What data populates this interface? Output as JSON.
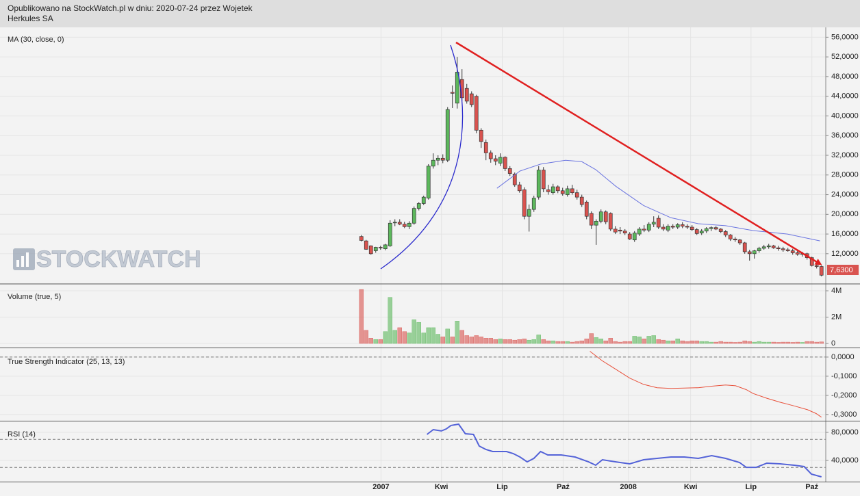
{
  "header": {
    "line1": "Opublikowano na StockWatch.pl w dniu: 2020-07-24 przez Wojetek",
    "line2": "Herkules SA"
  },
  "watermark": "STOCKWATCH",
  "chart_data": [
    {
      "type": "candlestick",
      "title": "MA (30, close, 0)",
      "xlim": [
        -75.4,
        96.9
      ],
      "ylim": [
        6,
        58
      ],
      "yticks": [
        {
          "value": 12,
          "label": "12,0000"
        },
        {
          "value": 16,
          "label": "16,0000"
        },
        {
          "value": 20,
          "label": "20,0000"
        },
        {
          "value": 24,
          "label": "24,0000"
        },
        {
          "value": 28,
          "label": "28,0000"
        },
        {
          "value": 32,
          "label": "32,0000"
        },
        {
          "value": 36,
          "label": "36,0000"
        },
        {
          "value": 40,
          "label": "40,0000"
        },
        {
          "value": 44,
          "label": "44,0000"
        },
        {
          "value": 48,
          "label": "48,0000"
        },
        {
          "value": 52,
          "label": "52,0000"
        },
        {
          "value": 56,
          "label": "56,0000"
        }
      ],
      "up_color": "#5cb85c",
      "down_color": "#d9534f",
      "candles": [
        [
          15.5,
          15.8,
          14.5,
          14.7
        ],
        [
          14.6,
          14.8,
          12.8,
          12.9
        ],
        [
          13.6,
          13.7,
          11.8,
          12.0
        ],
        [
          12.6,
          13.4,
          12.2,
          13.3
        ],
        [
          13.3,
          13.6,
          12.8,
          13.2
        ],
        [
          13.0,
          14.0,
          12.7,
          13.8
        ],
        [
          13.6,
          18.8,
          13.4,
          18.2
        ],
        [
          18.3,
          19.0,
          17.6,
          18.4
        ],
        [
          18.4,
          19.0,
          17.8,
          18.0
        ],
        [
          18.0,
          18.5,
          17.2,
          17.5
        ],
        [
          17.5,
          18.6,
          17.0,
          18.2
        ],
        [
          18.2,
          21.6,
          17.9,
          21.2
        ],
        [
          21.2,
          22.5,
          20.8,
          22.2
        ],
        [
          22.2,
          23.8,
          21.9,
          23.5
        ],
        [
          23.3,
          30.2,
          23.0,
          29.8
        ],
        [
          29.8,
          32.4,
          29.3,
          31.0
        ],
        [
          31.0,
          32.0,
          30.0,
          31.4
        ],
        [
          31.4,
          32.2,
          30.4,
          31.0
        ],
        [
          31.0,
          41.8,
          30.6,
          41.3
        ],
        [
          44.8,
          46.2,
          41.6,
          44.6
        ],
        [
          42.6,
          52.0,
          41.5,
          48.9
        ],
        [
          47.4,
          49.5,
          43.0,
          43.7
        ],
        [
          45.6,
          46.5,
          42.5,
          43.0
        ],
        [
          44.5,
          45.0,
          41.8,
          42.3
        ],
        [
          44.0,
          44.3,
          36.5,
          37.1
        ],
        [
          37.1,
          37.5,
          33.5,
          34.8
        ],
        [
          34.6,
          35.2,
          31.0,
          32.5
        ],
        [
          32.5,
          33.0,
          30.5,
          31.3
        ],
        [
          31.3,
          32.0,
          30.0,
          30.8
        ],
        [
          30.4,
          32.4,
          29.8,
          31.6
        ],
        [
          31.6,
          31.8,
          28.8,
          29.3
        ],
        [
          29.3,
          29.8,
          27.8,
          28.3
        ],
        [
          28.2,
          28.5,
          25.6,
          26.0
        ],
        [
          26.0,
          26.6,
          24.4,
          24.8
        ],
        [
          25.0,
          25.5,
          19.0,
          19.6
        ],
        [
          19.6,
          22.0,
          16.5,
          21.0
        ],
        [
          21.0,
          23.8,
          20.5,
          23.3
        ],
        [
          23.5,
          29.8,
          23.0,
          29.0
        ],
        [
          29.0,
          29.6,
          24.5,
          25.2
        ],
        [
          25.0,
          26.0,
          24.0,
          24.6
        ],
        [
          24.4,
          26.2,
          24.0,
          25.6
        ],
        [
          25.6,
          25.9,
          24.3,
          24.8
        ],
        [
          24.8,
          25.4,
          23.8,
          24.2
        ],
        [
          24.0,
          25.8,
          23.6,
          25.2
        ],
        [
          25.2,
          26.0,
          24.0,
          24.4
        ],
        [
          24.4,
          25.0,
          23.0,
          23.5
        ],
        [
          23.5,
          24.0,
          21.5,
          22.0
        ],
        [
          22.5,
          22.8,
          19.0,
          19.6
        ],
        [
          20.2,
          20.6,
          17.0,
          17.8
        ],
        [
          17.8,
          19.0,
          13.8,
          18.6
        ],
        [
          18.6,
          21.0,
          18.2,
          20.5
        ],
        [
          20.5,
          20.8,
          18.0,
          18.5
        ],
        [
          20.2,
          20.4,
          16.6,
          17.0
        ],
        [
          17.0,
          17.6,
          16.0,
          16.4
        ],
        [
          16.8,
          17.4,
          16.0,
          16.6
        ],
        [
          16.6,
          17.0,
          15.8,
          16.2
        ],
        [
          16.0,
          16.4,
          14.8,
          15.0
        ],
        [
          14.8,
          16.6,
          14.4,
          16.2
        ],
        [
          16.0,
          17.4,
          15.6,
          17.0
        ],
        [
          17.0,
          17.8,
          16.4,
          16.8
        ],
        [
          16.8,
          18.4,
          16.4,
          18.0
        ],
        [
          18.0,
          19.6,
          17.4,
          18.4
        ],
        [
          19.2,
          19.8,
          17.0,
          17.4
        ],
        [
          17.4,
          18.0,
          16.6,
          17.0
        ],
        [
          16.8,
          18.0,
          16.4,
          17.6
        ],
        [
          17.6,
          18.0,
          17.0,
          17.4
        ],
        [
          17.4,
          18.2,
          17.0,
          17.9
        ],
        [
          17.9,
          18.4,
          17.2,
          17.6
        ],
        [
          17.6,
          18.0,
          17.0,
          17.4
        ],
        [
          17.4,
          17.8,
          16.6,
          16.9
        ],
        [
          16.9,
          17.2,
          15.8,
          16.1
        ],
        [
          16.2,
          17.0,
          15.8,
          16.6
        ],
        [
          16.6,
          17.4,
          16.2,
          17.1
        ],
        [
          17.1,
          17.6,
          16.6,
          17.3
        ],
        [
          17.3,
          17.6,
          16.8,
          17.0
        ],
        [
          17.0,
          17.2,
          16.2,
          16.5
        ],
        [
          16.5,
          16.8,
          15.4,
          15.8
        ],
        [
          15.8,
          16.0,
          14.6,
          15.0
        ],
        [
          15.0,
          15.4,
          14.4,
          14.8
        ],
        [
          14.8,
          15.0,
          13.8,
          14.2
        ],
        [
          14.2,
          14.4,
          12.0,
          12.4
        ],
        [
          12.4,
          12.8,
          10.6,
          12.0
        ],
        [
          12.0,
          12.8,
          11.0,
          12.6
        ],
        [
          12.6,
          13.4,
          12.2,
          13.1
        ],
        [
          13.1,
          13.8,
          12.8,
          13.4
        ],
        [
          13.4,
          14.0,
          13.0,
          13.6
        ],
        [
          13.6,
          13.8,
          13.0,
          13.2
        ],
        [
          13.2,
          13.6,
          12.6,
          13.0
        ],
        [
          13.0,
          13.4,
          12.4,
          12.8
        ],
        [
          12.8,
          13.2,
          12.4,
          12.6
        ],
        [
          12.6,
          13.0,
          11.8,
          12.2
        ],
        [
          12.2,
          12.6,
          11.6,
          11.9
        ],
        [
          11.9,
          12.4,
          11.4,
          12.0
        ],
        [
          12.0,
          12.2,
          10.8,
          11.2
        ],
        [
          11.2,
          11.4,
          9.4,
          9.6
        ],
        [
          9.6,
          10.0,
          9.0,
          9.4
        ],
        [
          9.4,
          9.6,
          7.4,
          7.63
        ]
      ],
      "ma": {
        "color": "#6a74e0",
        "x": [
          28.3,
          33.1,
          37.4,
          42.6,
          46,
          48.9,
          53.1,
          58.9,
          64.6,
          70.3,
          76,
          81.7,
          88.9,
          95.7
        ],
        "values": [
          25.3,
          28.8,
          30.2,
          31.0,
          30.7,
          29.1,
          25.7,
          21.8,
          19.3,
          18.1,
          17.7,
          16.7,
          16.0,
          14.6
        ]
      },
      "last_price": 7.63,
      "last_price_label": "7,6300"
    },
    {
      "type": "volume",
      "title": "Volume (true, 5)",
      "xlim": [
        -75.4,
        96.9
      ],
      "ylim": [
        0,
        4470000
      ],
      "yticks": [
        0,
        {
          "value": 2000000,
          "label": "2M"
        },
        {
          "value": 4000000,
          "label": "4M"
        }
      ],
      "values": [
        4100000,
        1000000,
        400000,
        300000,
        300000,
        900000,
        3500000,
        1000000,
        1200000,
        900000,
        800000,
        1800000,
        1600000,
        800000,
        1200000,
        1200000,
        700000,
        500000,
        1100000,
        500000,
        1700000,
        1000000,
        600000,
        500000,
        600000,
        500000,
        400000,
        400000,
        300000,
        350000,
        300000,
        300000,
        250000,
        300000,
        350000,
        250000,
        300000,
        650000,
        300000,
        200000,
        200000,
        150000,
        150000,
        150000,
        100000,
        150000,
        200000,
        350000,
        750000,
        450000,
        350000,
        200000,
        400000,
        150000,
        100000,
        150000,
        150000,
        550000,
        500000,
        350000,
        550000,
        600000,
        300000,
        250000,
        200000,
        200000,
        350000,
        200000,
        150000,
        200000,
        200000,
        150000,
        150000,
        100000,
        100000,
        150000,
        100000,
        100000,
        80000,
        100000,
        200000,
        150000,
        100000,
        150000,
        100000,
        100000,
        100000,
        80000,
        100000,
        100000,
        80000,
        100000,
        80000,
        150000,
        150000,
        100000,
        120000
      ]
    },
    {
      "type": "line",
      "title": "True Strength Indicator (25, 13, 13)",
      "color": "#e8503a",
      "xlim": [
        -75.4,
        96.9
      ],
      "ylim": [
        -0.329,
        0.039
      ],
      "levels": [
        0
      ],
      "yticks": [
        {
          "value": 0,
          "label": "0,0000"
        },
        {
          "value": -0.1,
          "label": "-0,1000"
        },
        {
          "value": -0.2,
          "label": "-0,2000"
        },
        {
          "value": -0.3,
          "label": "-0,3000"
        }
      ],
      "x": [
        47.7,
        50.3,
        53.1,
        56,
        58.9,
        61.7,
        64.6,
        67.4,
        70.3,
        73.1,
        76,
        78.1,
        80.3,
        81.7,
        84.6,
        87.4,
        90.3,
        93.1,
        94.9,
        96
      ],
      "values": [
        0.03,
        -0.02,
        -0.064,
        -0.11,
        -0.143,
        -0.16,
        -0.164,
        -0.162,
        -0.16,
        -0.152,
        -0.146,
        -0.15,
        -0.17,
        -0.19,
        -0.215,
        -0.236,
        -0.255,
        -0.275,
        -0.295,
        -0.314
      ]
    },
    {
      "type": "line",
      "title": "RSI (14)",
      "color": "#5463d8",
      "xlim": [
        -75.4,
        96.9
      ],
      "ylim": [
        9.8,
        94.6
      ],
      "levels": [
        70,
        30
      ],
      "yticks": [
        {
          "value": 80,
          "label": "80,0000"
        },
        {
          "value": 40,
          "label": "40,0000"
        }
      ],
      "xticks": [
        {
          "value": 4.1,
          "label": "2007"
        },
        {
          "value": 16.7,
          "label": "Kwi"
        },
        {
          "value": 29.4,
          "label": "Lip"
        },
        {
          "value": 42.1,
          "label": "Paź"
        },
        {
          "value": 55.7,
          "label": "2008"
        },
        {
          "value": 68.7,
          "label": "Kwi"
        },
        {
          "value": 81.3,
          "label": "Lip"
        },
        {
          "value": 94,
          "label": "Paź"
        }
      ],
      "x": [
        13.7,
        15,
        16.7,
        17.7,
        18.7,
        20.3,
        21.7,
        23.4,
        24.6,
        26,
        27.4,
        30.3,
        31.7,
        33.1,
        34.6,
        36,
        37.4,
        38.9,
        41.7,
        44.6,
        47.4,
        48.9,
        50.3,
        53.1,
        56,
        58.9,
        61.7,
        64.6,
        67.4,
        70.3,
        73.1,
        76,
        78.9,
        80.3,
        82.4,
        84.6,
        87.4,
        90.3,
        92.4,
        93.9,
        96
      ],
      "values": [
        77.1,
        83.9,
        82,
        84.9,
        89.8,
        91.7,
        78,
        77.1,
        60.5,
        55.6,
        52.7,
        52.7,
        49.8,
        44.9,
        38,
        42.9,
        52.7,
        47.8,
        47.8,
        44.9,
        38,
        33.2,
        41,
        38,
        35.1,
        41,
        42.9,
        44.9,
        44.9,
        42.9,
        46.8,
        42.9,
        37.1,
        30.2,
        30.2,
        36.1,
        35.1,
        33.2,
        31.2,
        20.5,
        16.6
      ]
    }
  ]
}
